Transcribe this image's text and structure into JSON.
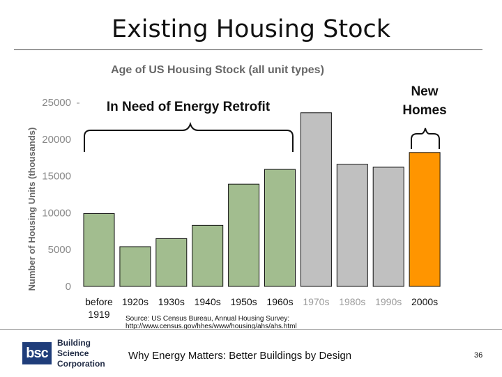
{
  "slide": {
    "title": "Existing Housing Stock"
  },
  "chart_data": {
    "type": "bar",
    "title": "Age of US Housing Stock (all unit types)",
    "ylabel": "Number of Housing Units (thousands)",
    "xlabel": "",
    "ylim": [
      0,
      25000
    ],
    "yticks": [
      "0",
      "5000",
      "10000",
      "15000",
      "20000",
      "25000"
    ],
    "categories": [
      {
        "line1": "before",
        "line2": "1919"
      },
      {
        "line1": "1920s",
        "line2": ""
      },
      {
        "line1": "1930s",
        "line2": ""
      },
      {
        "line1": "1940s",
        "line2": ""
      },
      {
        "line1": "1950s",
        "line2": ""
      },
      {
        "line1": "1960s",
        "line2": ""
      },
      {
        "line1": "1970s",
        "line2": ""
      },
      {
        "line1": "1980s",
        "line2": ""
      },
      {
        "line1": "1990s",
        "line2": ""
      },
      {
        "line1": "2000s",
        "line2": ""
      }
    ],
    "values": [
      9900,
      5400,
      6500,
      8300,
      13900,
      15900,
      23600,
      16600,
      16200,
      18200
    ],
    "groups": [
      "retrofit",
      "retrofit",
      "retrofit",
      "retrofit",
      "retrofit",
      "retrofit",
      "other",
      "other",
      "other",
      "new"
    ],
    "colors": {
      "retrofit": "#a2bd8f",
      "other": "#c0c0c0",
      "new": "#ff9500",
      "retrofit_label": "#111111",
      "other_label": "#999999",
      "new_label": "#111111"
    },
    "annotations": {
      "retrofit": "In Need of Energy Retrofit",
      "new_line1": "New",
      "new_line2": "Homes"
    },
    "source_line1": "Source: US Census Bureau, Annual Housing Survey:",
    "source_line2": "http://www.census.gov/hhes/www/housing/ahs/ahs.html"
  },
  "footer": {
    "logo_line1": "Building",
    "logo_line2": "Science",
    "logo_line3": "Corporation",
    "logo_mark": "bsc",
    "text": "Why Energy Matters: Better Buildings by Design",
    "page": "36"
  }
}
